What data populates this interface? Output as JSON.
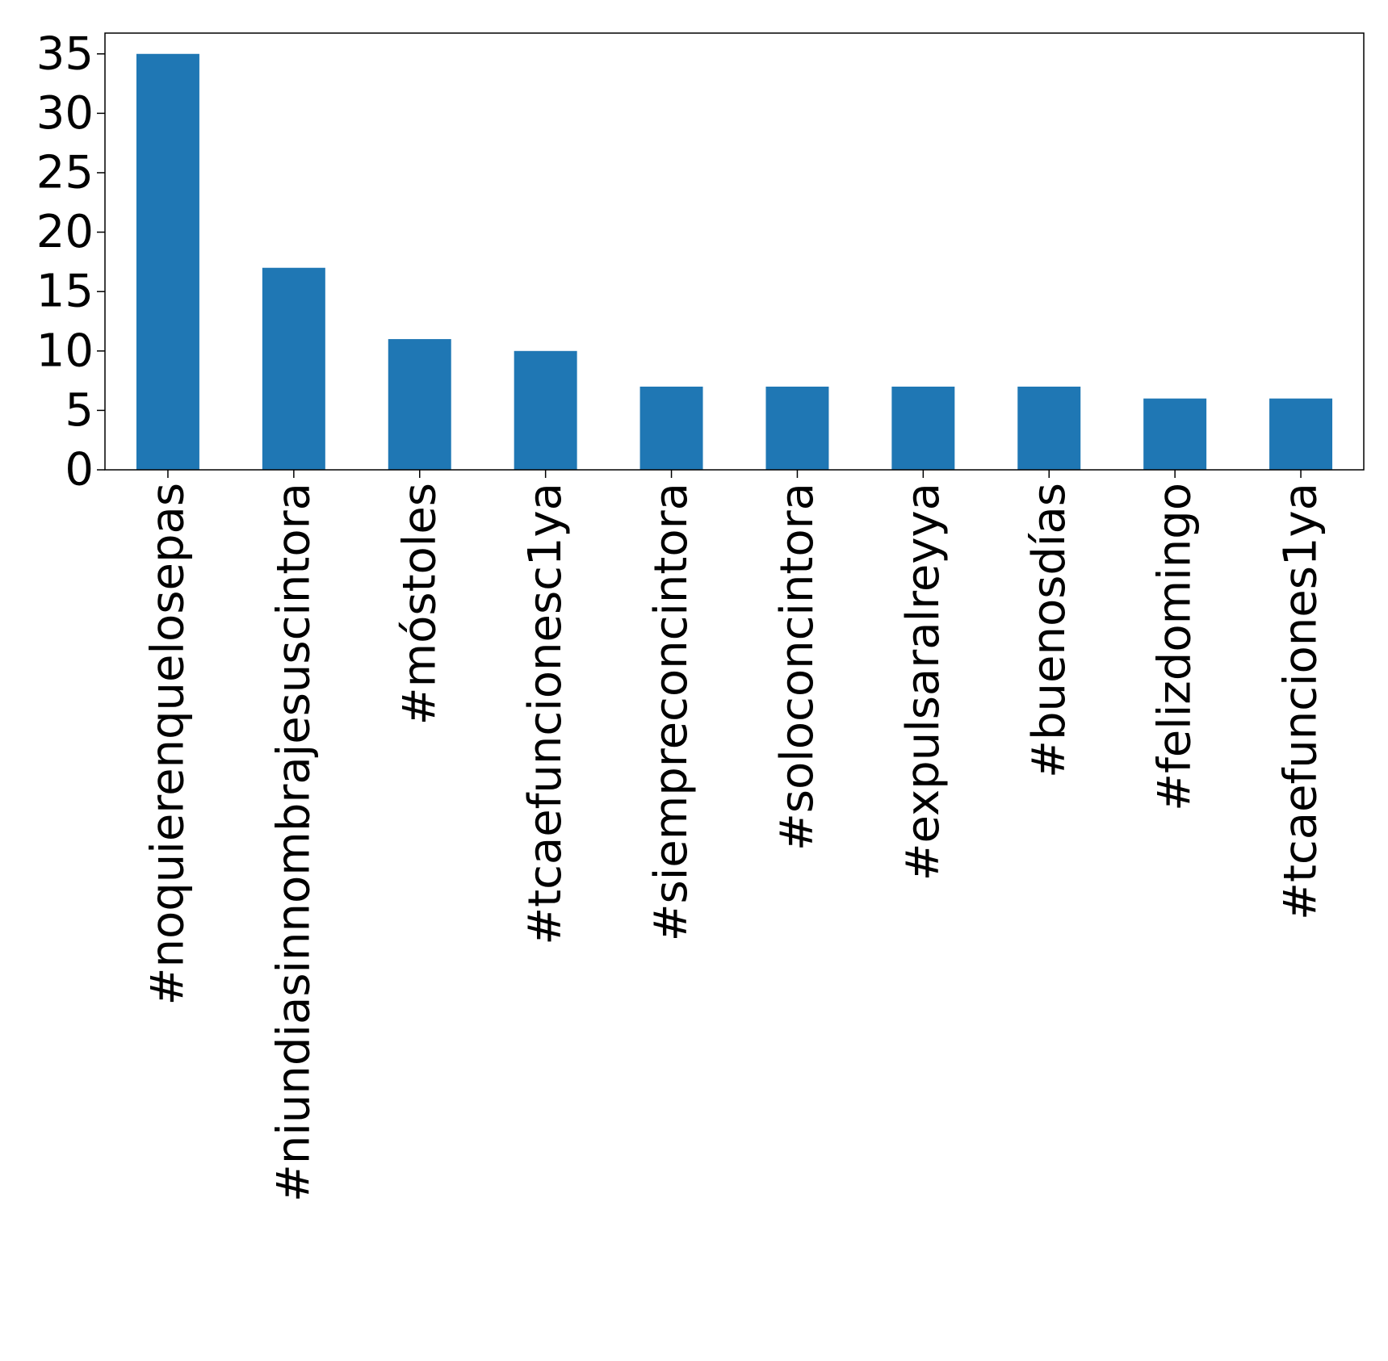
{
  "chart_data": {
    "type": "bar",
    "title": "",
    "xlabel": "",
    "ylabel": "",
    "categories": [
      "#noquierenquelosepas",
      "#niundiasinnombrajesuscintora",
      "#móstoles",
      "#tcaefuncionesc1ya",
      "#siempreconcintora",
      "#soloconcintora",
      "#expulsaralreyya",
      "#buenosdías",
      "#felizdomingo",
      "#tcaefunciones1ya"
    ],
    "values": [
      35,
      17,
      11,
      10,
      7,
      7,
      7,
      7,
      6,
      6
    ],
    "ylim": [
      0,
      36.75
    ],
    "yticks": [
      0,
      5,
      10,
      15,
      20,
      25,
      30,
      35
    ],
    "grid": false,
    "legend": "none",
    "bar_color": "#1f77b4"
  }
}
